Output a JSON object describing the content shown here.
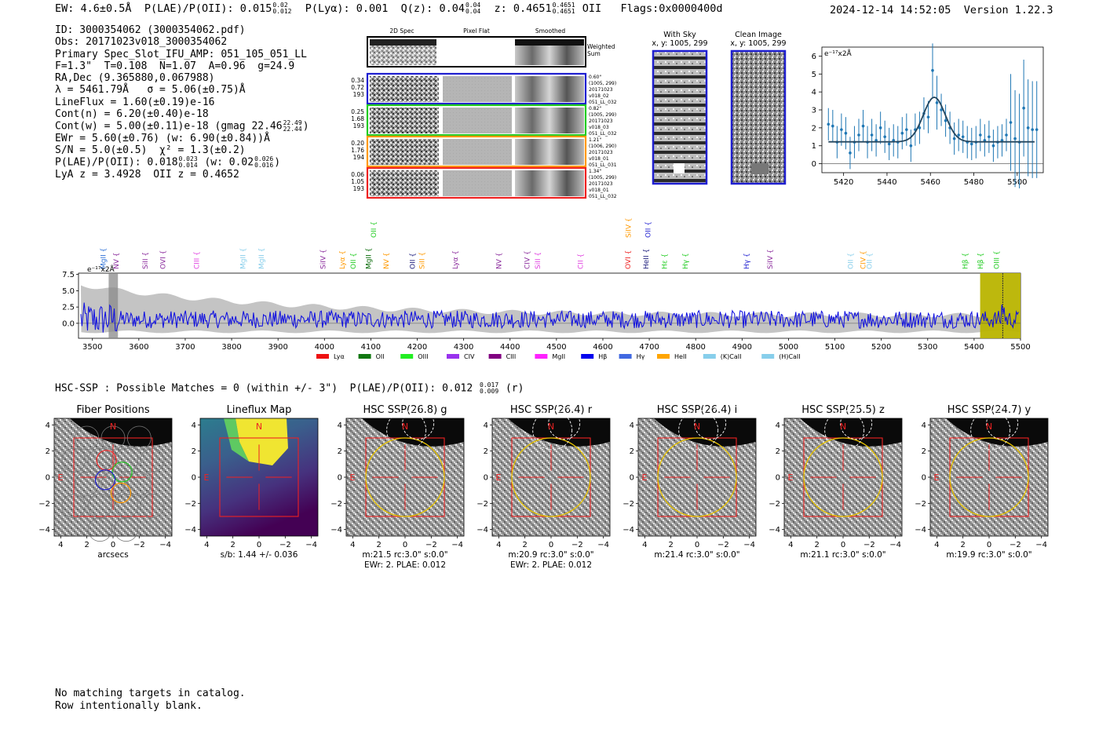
{
  "header": {
    "ew": "EW: 4.6±0.5Å",
    "plae_label": "P(LAE)/P(OII): 0.015",
    "plae_hi": "0.02",
    "plae_lo": "0.012",
    "plya": "P(Lyα): 0.001",
    "qz": "Q(z): 0.04",
    "qz_hi": "0.04",
    "qz_lo": "0.04",
    "z": "z: 0.4651",
    "z_hi": "0.4651",
    "z_lo": "0.4651",
    "z_line": "OII",
    "flags": "Flags:0x0000400d",
    "timestamp": "2024-12-14 14:52:05",
    "version": "Version 1.22.3"
  },
  "info_lines": [
    "ID: 3000354062 (3000354062.pdf)",
    "Obs: 20171023v018_3000354062",
    "Primary Spec_Slot_IFU_AMP: 051_105_051_LL",
    "F=1.3\"  T=0.108  N=1.07  A=0.96  g=24.9",
    "RA,Dec (9.365880,0.067988)",
    "λ = 5461.79Å   σ = 5.06(±0.75)Å",
    "LineFlux = 1.60(±0.19)e-16",
    "Cont(n) = 6.20(±0.40)e-18",
    "Cont(w) = 5.00(±0.11)e-18 (gmag 22.46",
    "EWr = 5.60(±0.76) (w: 6.90(±0.84))Å",
    "S/N = 5.0(±0.5)  χ² = 1.3(±0.2)",
    "P(LAE)/P(OII): 0.018",
    "LyA z = 3.4928  OII z = 0.4652"
  ],
  "info_fracs": {
    "gmag_hi": "22.49",
    "gmag_lo": "22.44",
    "gmag_close": ")",
    "plae_hi": "0.023",
    "plae_lo": "0.014",
    "plae_w": "(w: 0.02",
    "plae_w_hi": "0.026",
    "plae_w_lo": "0.016",
    "plae_w_close": ")"
  },
  "cutouts": {
    "col_2d": "2D Spec",
    "col_flat": "Pixel Flat",
    "col_smooth": "Smoothed",
    "weighted_sum": [
      "Weighted",
      "Sum"
    ],
    "rows": [
      {
        "left": [
          "0.34",
          "0.72",
          "193"
        ],
        "right": [
          "0.60\"",
          "(1005, 299)",
          "20171023",
          "v018_02",
          "051_LL_032"
        ],
        "color": "#1f1fd0"
      },
      {
        "left": [
          "0.25",
          "1.68",
          "193"
        ],
        "right": [
          "0.82\"",
          "(1005, 299)",
          "20171023",
          "v018_03",
          "051_LL_032"
        ],
        "color": "#22cc22"
      },
      {
        "left": [
          "0.20",
          "1.76",
          "194"
        ],
        "right": [
          "1.21\"",
          "(1006, 290)",
          "20171023",
          "v018_01",
          "051_LL_031"
        ],
        "color": "#ff9900"
      },
      {
        "left": [
          "0.06",
          "1.05",
          "193"
        ],
        "right": [
          "1.34\"",
          "(1005, 299)",
          "20171023",
          "v018_01",
          "051_LL_032"
        ],
        "color": "#ee2222"
      }
    ],
    "with_sky": [
      "With Sky",
      "x, y: 1005, 299"
    ],
    "clean": [
      "Clean Image",
      "x, y: 1005, 299"
    ]
  },
  "zoom_chart": {
    "ylabel": "e⁻¹⁷x2Å",
    "xticks": [
      "5420",
      "5440",
      "5460",
      "5480",
      "5500"
    ],
    "yticks": [
      "0",
      "1",
      "2",
      "3",
      "4",
      "5",
      "6"
    ]
  },
  "spectrum": {
    "ylabel": "e⁻¹⁷x2Å",
    "yticks": [
      "7.5",
      "5.0",
      "2.5",
      "0.0"
    ],
    "xticks": [
      "3500",
      "3600",
      "3700",
      "3800",
      "3900",
      "4000",
      "4100",
      "4200",
      "4300",
      "4400",
      "4500",
      "4600",
      "4700",
      "4800",
      "4900",
      "5000",
      "5100",
      "5200",
      "5300",
      "5400",
      "5500"
    ],
    "lines": [
      {
        "label": "MgII",
        "x": 3523,
        "color": "#2c6fd6"
      },
      {
        "label": "NV",
        "x": 3551,
        "color": "#8a2b9c"
      },
      {
        "label": "SiII",
        "x": 3614,
        "color": "#8a2b9c"
      },
      {
        "label": "OVI",
        "x": 3652,
        "color": "#8a2b9c"
      },
      {
        "label": "CIII",
        "x": 3725,
        "color": "#e040e0"
      },
      {
        "label": "MgII",
        "x": 3824,
        "color": "#87ceeb"
      },
      {
        "label": "MgII",
        "x": 3864,
        "color": "#87ceeb"
      },
      {
        "label": "SiIV",
        "x": 3997,
        "color": "#8a2b9c"
      },
      {
        "label": "Lyα",
        "x": 4038,
        "color": "#ff9900"
      },
      {
        "label": "OII",
        "x": 4062,
        "color": "#22cc22"
      },
      {
        "label": "MgII",
        "x": 4095,
        "color": "#006600"
      },
      {
        "label": "OII",
        "x": 4106,
        "color": "#22cc22",
        "raised": true
      },
      {
        "label": "NV",
        "x": 4133,
        "color": "#ff9900"
      },
      {
        "label": "OII",
        "x": 4190,
        "color": "#1a1a7a"
      },
      {
        "label": "SiII",
        "x": 4210,
        "color": "#ff9900"
      },
      {
        "label": "Lyα",
        "x": 4282,
        "color": "#8a2b9c"
      },
      {
        "label": "NV",
        "x": 4376,
        "color": "#8a2b9c"
      },
      {
        "label": "CIV",
        "x": 4437,
        "color": "#8a2b9c"
      },
      {
        "label": "SiII",
        "x": 4460,
        "color": "#e040e0"
      },
      {
        "label": "CII",
        "x": 4552,
        "color": "#e040e0"
      },
      {
        "label": "SiIV",
        "x": 4655,
        "color": "#ff9900",
        "raised": true
      },
      {
        "label": "OVI",
        "x": 4654,
        "color": "#ee2222"
      },
      {
        "label": "HeII",
        "x": 4693,
        "color": "#1a1a7a"
      },
      {
        "label": "OII",
        "x": 4697,
        "color": "#1f1fd0",
        "raised": true
      },
      {
        "label": "Hε",
        "x": 4733,
        "color": "#22cc22"
      },
      {
        "label": "Hγ",
        "x": 4778,
        "color": "#22cc22"
      },
      {
        "label": "Hγ",
        "x": 4910,
        "color": "#1f1fd0"
      },
      {
        "label": "SiIV",
        "x": 4960,
        "color": "#8a2b9c"
      },
      {
        "label": "OII",
        "x": 5134,
        "color": "#87ceeb"
      },
      {
        "label": "CIV",
        "x": 5161,
        "color": "#ff9900"
      },
      {
        "label": "OII",
        "x": 5174,
        "color": "#87ceeb"
      },
      {
        "label": "Hβ",
        "x": 5381,
        "color": "#22cc22"
      },
      {
        "label": "Hβ",
        "x": 5414,
        "color": "#22cc22"
      },
      {
        "label": "OIII",
        "x": 5448,
        "color": "#22cc22"
      }
    ],
    "legend": [
      {
        "label": "Lyα",
        "color": "#ee1111"
      },
      {
        "label": "OII",
        "color": "#117711"
      },
      {
        "label": "OIII",
        "color": "#22ee22"
      },
      {
        "label": "CIV",
        "color": "#9932ee"
      },
      {
        "label": "CIII",
        "color": "#800080"
      },
      {
        "label": "MgII",
        "color": "#ff22ff"
      },
      {
        "label": "Hβ",
        "color": "#0000ee"
      },
      {
        "label": "Hγ",
        "color": "#4169e1"
      },
      {
        "label": "HeII",
        "color": "#ffa500"
      },
      {
        "label": "(K)CaII",
        "color": "#87ceeb"
      },
      {
        "label": "(H)CaII",
        "color": "#87ceeb"
      }
    ]
  },
  "hsc": {
    "title": "HSC-SSP : Possible Matches = 0 (within +/- 3\")  P(LAE)/P(OII): 0.012",
    "frac_hi": "0.017",
    "frac_lo": "0.009",
    "band": "(r)",
    "panels": [
      {
        "title": "Fiber Positions",
        "caption1": "arcsecs",
        "caption2": ""
      },
      {
        "title": "Lineflux Map",
        "caption1": "s/b: 1.44 +/- 0.036",
        "caption2": ""
      },
      {
        "title": "HSC SSP(26.8) g",
        "caption1": "m:21.5 rc:3.0\"  s:0.0\"",
        "caption2": "EWr: 2, PLAE: 0.012"
      },
      {
        "title": "HSC SSP(26.4) r",
        "caption1": "m:20.9 rc:3.0\"  s:0.0\"",
        "caption2": "EWr: 2, PLAE: 0.012"
      },
      {
        "title": "HSC SSP(26.4) i",
        "caption1": "m:21.4 rc:3.0\"  s:0.0\"",
        "caption2": ""
      },
      {
        "title": "HSC SSP(25.5) z",
        "caption1": "m:21.1 rc:3.0\"  s:0.0\"",
        "caption2": ""
      },
      {
        "title": "HSC SSP(24.7) y",
        "caption1": "m:19.9 rc:3.0\"  s:0.0\"",
        "caption2": ""
      }
    ],
    "ticks": [
      "4",
      "2",
      "0",
      "−2",
      "−4"
    ],
    "north": "N",
    "east": "E"
  },
  "footer": [
    "No matching targets in catalog.",
    "Row intentionally blank."
  ],
  "chart_data": [
    {
      "type": "line",
      "title": "",
      "xlabel": "",
      "ylabel": "e⁻¹⁷x2Å",
      "xlim": [
        5410,
        5512
      ],
      "ylim": [
        -0.5,
        6.5
      ],
      "series": [
        {
          "name": "",
          "x": [
            5413,
            5415,
            5417,
            5419,
            5421,
            5423,
            5425,
            5427,
            5429,
            5431,
            5433,
            5435,
            5437,
            5439,
            5441,
            5443,
            5445,
            5447,
            5449,
            5451,
            5453,
            5455,
            5457,
            5459,
            5461,
            5463,
            5465,
            5467,
            5469,
            5471,
            5473,
            5475,
            5477,
            5479,
            5481,
            5483,
            5485,
            5487,
            5489,
            5491,
            5493,
            5495,
            5497,
            5499,
            5501,
            5503,
            5505,
            5507,
            5509
          ],
          "y": [
            2.2,
            2.1,
            1.2,
            1.9,
            1.7,
            0.6,
            1.2,
            1.6,
            2.1,
            1.2,
            1.6,
            1.3,
            2.0,
            1.5,
            1.1,
            1.3,
            1.2,
            1.7,
            1.9,
            1.0,
            1.9,
            2.0,
            2.8,
            2.6,
            5.2,
            3.4,
            3.0,
            2.4,
            2.0,
            1.4,
            1.6,
            1.5,
            1.2,
            1.1,
            1.2,
            1.6,
            1.3,
            1.5,
            1.0,
            1.2,
            1.3,
            1.6,
            2.3,
            1.4,
            1.2,
            3.1,
            2.0,
            1.9,
            1.9
          ]
        }
      ],
      "fit": {
        "continuum": 1.22,
        "center": 5461.8,
        "sigma": 5.06,
        "peak": 3.7
      }
    },
    {
      "type": "line",
      "title": "",
      "xlabel": "",
      "ylabel": "e⁻¹⁷x2Å",
      "xlim": [
        3470,
        5500
      ],
      "ylim": [
        -2.3,
        7.7
      ],
      "shaded_regions": [
        [
          3535,
          3555
        ],
        [
          5413,
          5500
        ]
      ]
    }
  ]
}
